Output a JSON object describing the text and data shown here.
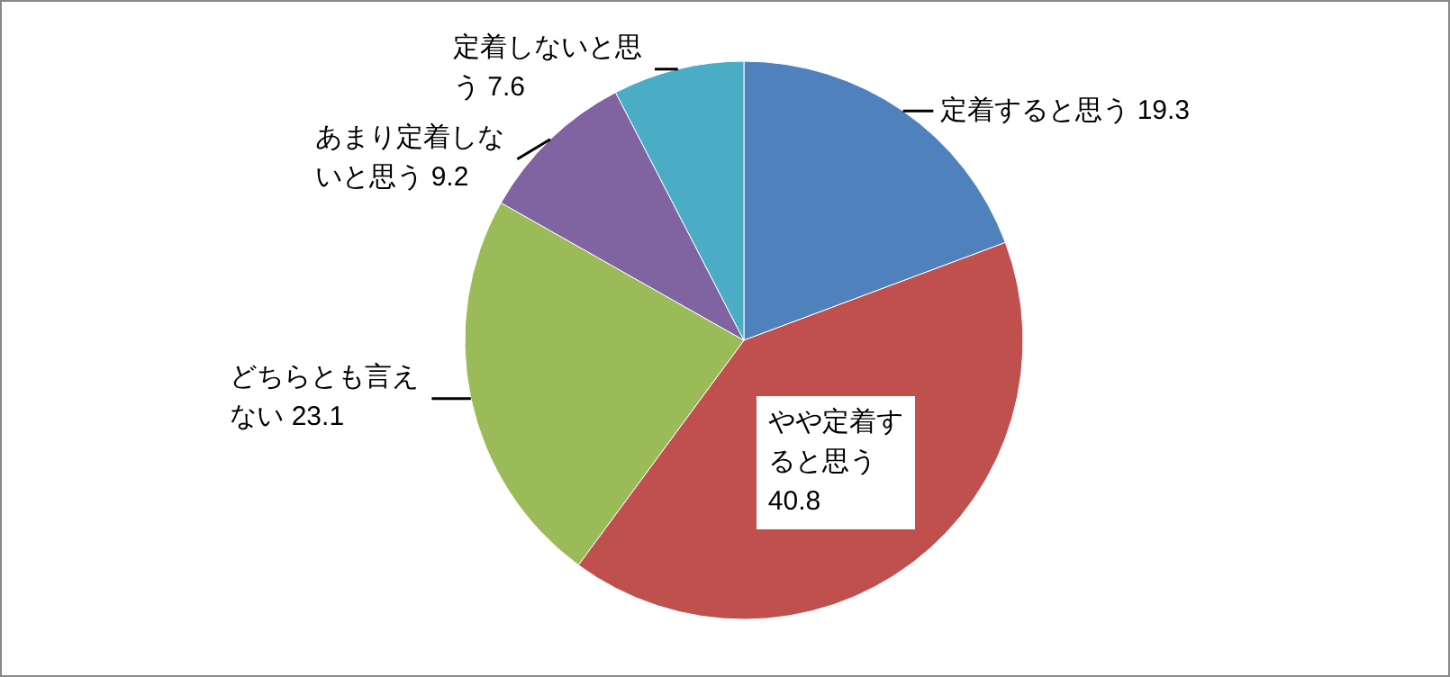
{
  "chart_data": {
    "type": "pie",
    "categories": [
      "定着すると思う",
      "やや定着すると思う",
      "どちらとも言えない",
      "あまり定着しないと思う",
      "定着しないと思う"
    ],
    "values": [
      19.3,
      40.8,
      23.1,
      9.2,
      7.6
    ],
    "colors": [
      "#4f81bd",
      "#c0504d",
      "#9bbb59",
      "#8064a2",
      "#4bacc6"
    ],
    "data_labels": true
  }
}
